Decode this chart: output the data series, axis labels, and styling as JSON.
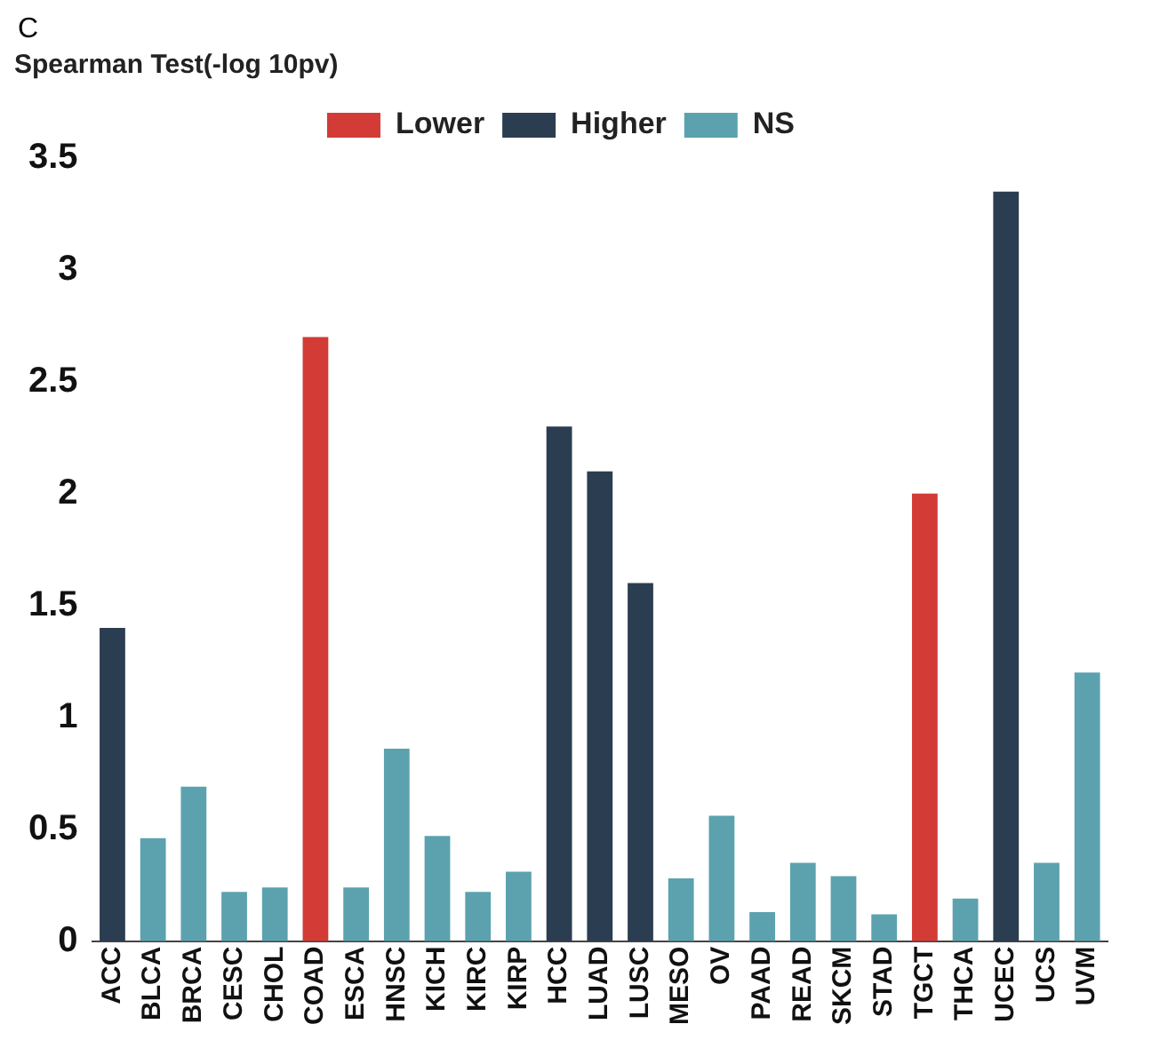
{
  "chart_data": {
    "type": "bar",
    "ylabel": "Spearman Test(-log 10pv)",
    "annotations": [
      "C"
    ],
    "categories": [
      "ACC",
      "BLCA",
      "BRCA",
      "CESC",
      "CHOL",
      "COAD",
      "ESCA",
      "HNSC",
      "KICH",
      "KIRC",
      "KIRP",
      "HCC",
      "LUAD",
      "LUSC",
      "MESO",
      "OV",
      "PAAD",
      "READ",
      "SKCM",
      "STAD",
      "TGCT",
      "THCA",
      "UCEC",
      "UCS",
      "UVM"
    ],
    "stacked": true,
    "series": [
      {
        "name": "Lower",
        "color": "#d23b36",
        "values": [
          null,
          null,
          null,
          null,
          null,
          2.7,
          null,
          null,
          null,
          null,
          null,
          null,
          null,
          null,
          null,
          null,
          null,
          null,
          null,
          null,
          2.0,
          null,
          null,
          null,
          null
        ]
      },
      {
        "name": "Higher",
        "color": "#2b3d50",
        "values": [
          1.4,
          null,
          null,
          null,
          null,
          null,
          null,
          null,
          null,
          null,
          null,
          2.3,
          2.1,
          1.6,
          null,
          null,
          null,
          null,
          null,
          null,
          null,
          null,
          3.35,
          null,
          null
        ]
      },
      {
        "name": "NS",
        "color": "#5ba2ae",
        "values": [
          null,
          0.46,
          0.69,
          0.22,
          0.24,
          null,
          0.24,
          0.86,
          0.47,
          0.22,
          0.31,
          null,
          null,
          null,
          0.28,
          0.56,
          0.13,
          0.35,
          0.29,
          0.12,
          null,
          0.19,
          null,
          0.35,
          1.2
        ]
      }
    ],
    "ylim": [
      0,
      3.5
    ],
    "yticks": [
      0,
      0.5,
      1,
      1.5,
      2,
      2.5,
      3,
      3.5
    ],
    "grid": false,
    "legend": "top"
  }
}
